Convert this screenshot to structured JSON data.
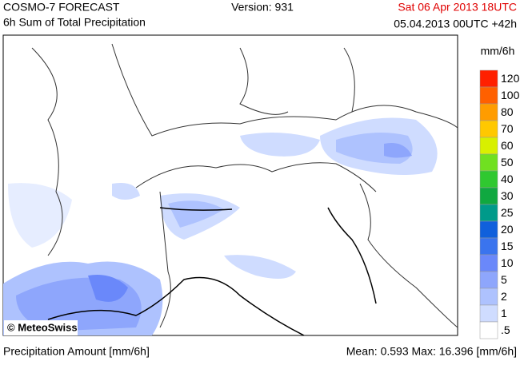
{
  "header": {
    "title": "COSMO-7 FORECAST",
    "subtitle": "6h Sum of Total Precipitation",
    "version": "Version: 931",
    "valid_time": "Sat 06 Apr 2013 18UTC",
    "run_time": "05.04.2013 00UTC +42h"
  },
  "map": {
    "credit": "© MeteoSwiss"
  },
  "legend": {
    "unit": "mm/6h",
    "entries": [
      {
        "label": "120",
        "color": "#ff2000"
      },
      {
        "label": "100",
        "color": "#ff6000"
      },
      {
        "label": "80",
        "color": "#ff9c00"
      },
      {
        "label": "70",
        "color": "#ffc800"
      },
      {
        "label": "60",
        "color": "#d8f000"
      },
      {
        "label": "50",
        "color": "#70e020"
      },
      {
        "label": "40",
        "color": "#30c830"
      },
      {
        "label": "30",
        "color": "#10a840"
      },
      {
        "label": "25",
        "color": "#009a8a"
      },
      {
        "label": "20",
        "color": "#1060dc"
      },
      {
        "label": "15",
        "color": "#3a74ee"
      },
      {
        "label": "10",
        "color": "#6a88fa"
      },
      {
        "label": "5",
        "color": "#8ea6fc"
      },
      {
        "label": "2",
        "color": "#aec2fe"
      },
      {
        "label": "1",
        "color": "#cfdcff"
      },
      {
        "label": ".5",
        "color": "#ffffff"
      }
    ]
  },
  "footer": {
    "left": "Precipitation Amount [mm/6h]",
    "right": "Mean:  0.593 Max: 16.396 [mm/6h]"
  }
}
